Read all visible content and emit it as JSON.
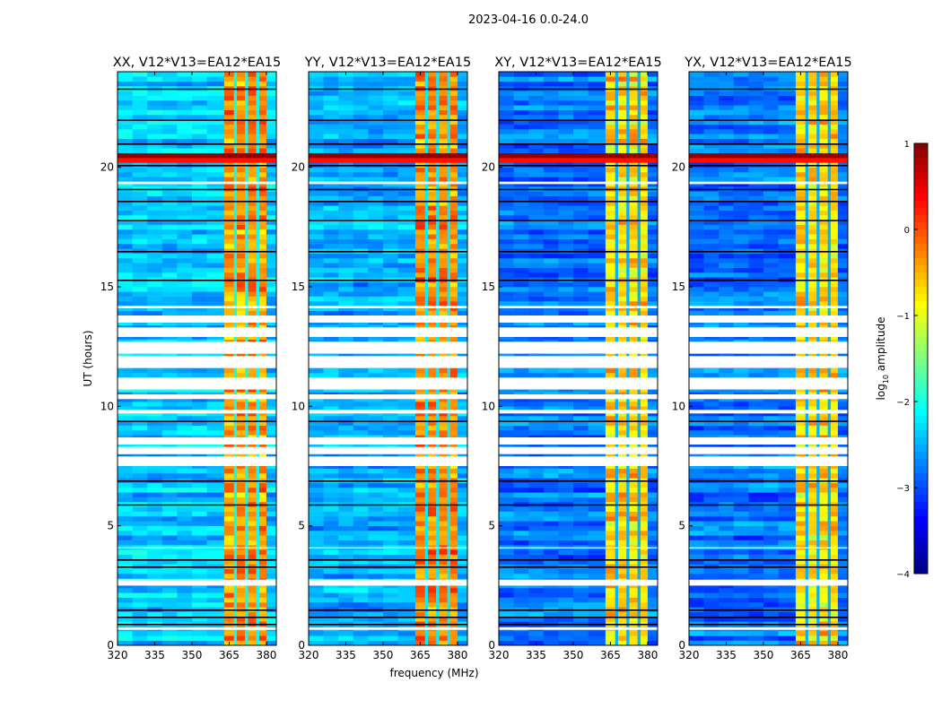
{
  "chart_data": {
    "type": "heatmap",
    "title": "2023-04-16 0.0-24.0",
    "xlabel": "frequency (MHz)",
    "ylabel": "UT (hours)",
    "xlim": [
      320,
      384
    ],
    "ylim": [
      0,
      24
    ],
    "xticks": [
      "320",
      "335",
      "350",
      "365",
      "380"
    ],
    "xtick_values": [
      320,
      335,
      350,
      365,
      380
    ],
    "yticks": [
      "0",
      "5",
      "10",
      "15",
      "20"
    ],
    "ytick_values": [
      0,
      5,
      10,
      15,
      20
    ],
    "panels": [
      {
        "title": "XX, V12*V13=EA12*EA15",
        "background_level": -2.4,
        "band_level": -0.5
      },
      {
        "title": "YY, V12*V13=EA12*EA15",
        "background_level": -2.5,
        "band_level": -0.4
      },
      {
        "title": "XY, V12*V13=EA12*EA15",
        "background_level": -2.8,
        "band_level": -0.8
      },
      {
        "title": "YX, V12*V13=EA12*EA15",
        "background_level": -2.8,
        "band_level": -0.8
      }
    ],
    "hot_band_mhz": [
      363,
      380
    ],
    "band_gaps_mhz": [
      367.5,
      372,
      376.5
    ],
    "bright_rows_hours": [
      {
        "t": 20.5,
        "level": 0.9
      },
      {
        "t": 20.4,
        "level": 0.3
      }
    ],
    "dark_rows_hours": [
      0.9,
      1.2,
      1.5,
      3.3,
      3.6,
      5.9,
      6.9,
      9.4,
      15.3,
      16.5,
      17.8,
      18.6,
      19.1,
      20.1,
      21.0,
      22.0,
      23.3
    ],
    "flagged_time_ranges_hours": [
      [
        0.65,
        0.75
      ],
      [
        2.5,
        2.75
      ],
      [
        4.05,
        4.1
      ],
      [
        7.5,
        7.9
      ],
      [
        8.0,
        8.3
      ],
      [
        8.4,
        8.7
      ],
      [
        9.7,
        9.85
      ],
      [
        10.3,
        10.5
      ],
      [
        10.7,
        11.2
      ],
      [
        11.6,
        12.1
      ],
      [
        12.2,
        12.7
      ],
      [
        12.9,
        13.3
      ],
      [
        13.5,
        13.8
      ],
      [
        14.1,
        14.2
      ],
      [
        19.3,
        19.4
      ]
    ],
    "colorbar": {
      "label": "log10 amplitude",
      "label_main": "log",
      "label_sub": "10",
      "label_rest": " amplitude",
      "range": [
        -4,
        1
      ],
      "ticks": [
        "1",
        "0",
        "−1",
        "−2",
        "−3",
        "−4"
      ],
      "tick_values": [
        1,
        0,
        -1,
        -2,
        -3,
        -4
      ],
      "colormap": "jet"
    }
  }
}
